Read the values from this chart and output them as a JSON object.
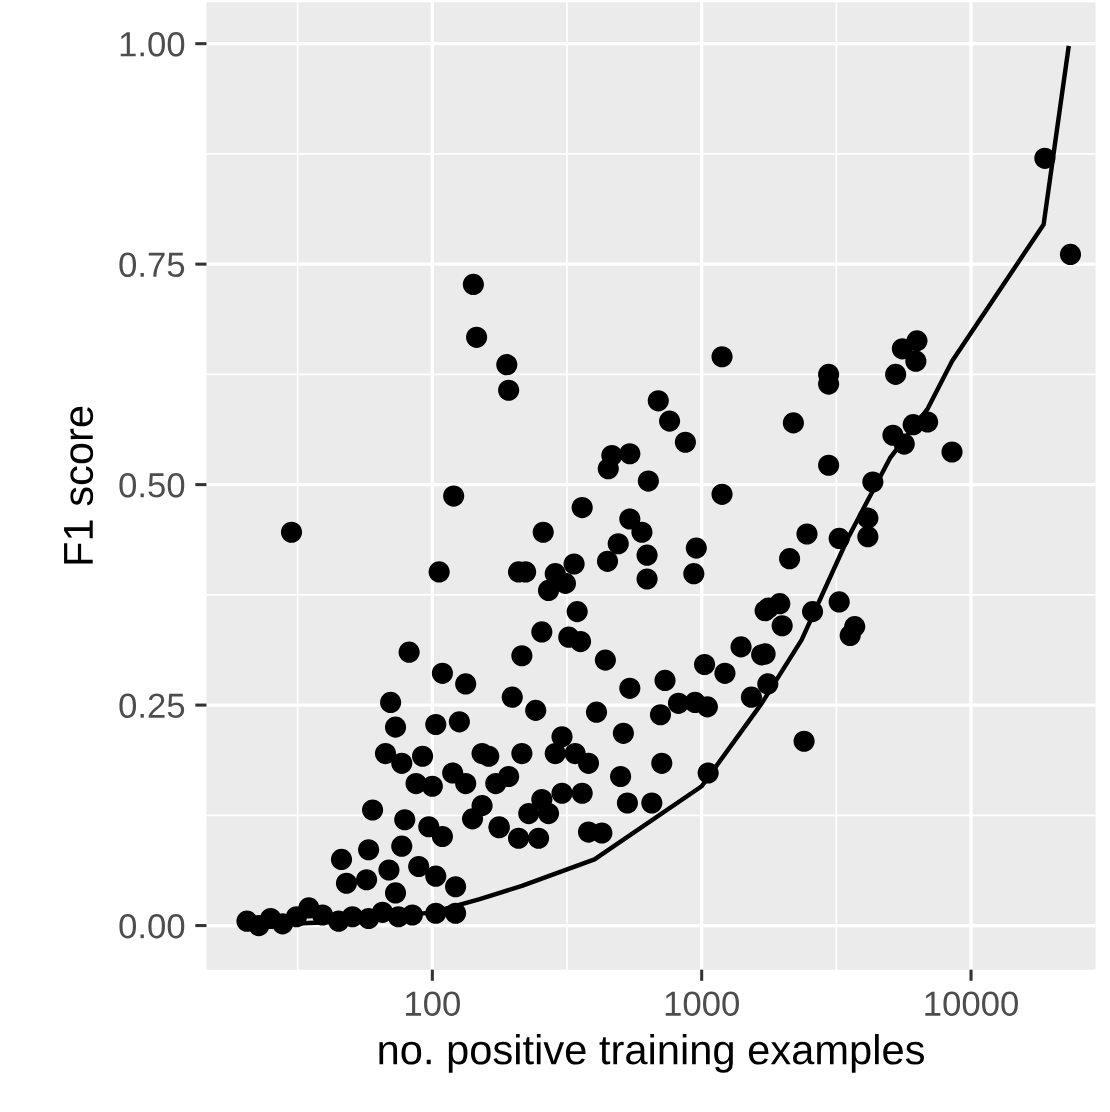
{
  "chart_data": {
    "type": "scatter",
    "xlabel": "no. positive training examples",
    "ylabel": "F1 score",
    "log": "x",
    "grid": true,
    "xlim": [
      14.5,
      29000
    ],
    "xticks": [
      100,
      1000,
      10000
    ],
    "ylim": [
      -0.05,
      1.047
    ],
    "yticks": [
      {
        "value": 0,
        "label": "0.00"
      },
      {
        "value": 0.25,
        "label": "0.25"
      },
      {
        "value": 0.5,
        "label": "0.50"
      },
      {
        "value": 0.75,
        "label": "0.75"
      },
      {
        "value": 1,
        "label": "1.00"
      }
    ],
    "series": [
      {
        "color": "#000000",
        "marker": "circle",
        "x": [
          18800,
          23400,
          6300,
          5560,
          6240,
          5250,
          2960,
          2960,
          2190,
          6900,
          6100,
          5130,
          5650,
          8500,
          2960,
          4320,
          4140,
          4140,
          2460,
          3240,
          2120,
          1950,
          1720,
          1990,
          2580,
          3240,
          3700,
          3560,
          1720,
          1760,
          2400,
          1190,
          690,
          760,
          870,
          464,
          541,
          450,
          634,
          1190,
          142,
          146,
          189,
          192,
          360,
          258,
          541,
          600,
          490,
          447,
          627,
          627,
          955,
          935,
          336,
          286,
          312,
          270,
          345,
          222,
          255,
          321,
          355,
          215,
          439,
          541,
          731,
          1025,
          1220,
          1400,
          1670,
          1770,
          1530,
          820,
          945,
          1050,
          703,
          198,
          242,
          407,
          512,
          303,
          339,
          380,
          286,
          215,
          162,
          192,
          711,
          500,
          1057,
          360,
          303,
          255,
          228,
          270,
          530,
          653,
          177,
          209,
          248,
          380,
          426,
          153,
          153,
          30,
          106,
          120,
          209,
          82,
          109,
          133,
          70,
          73,
          103,
          126,
          67,
          77,
          92,
          87,
          100,
          119,
          133,
          172,
          60,
          79,
          97,
          109,
          141,
          177,
          46,
          58,
          77,
          89,
          69,
          48,
          57,
          73,
          103,
          122,
          103,
          122,
          20.5,
          22.7,
          25.1,
          27.8,
          31.3,
          34.8,
          39.1,
          44.9,
          50.5,
          58,
          65.3,
          74.8,
          84.3
        ],
        "values": [
          0.87,
          0.761,
          0.663,
          0.654,
          0.64,
          0.625,
          0.625,
          0.614,
          0.57,
          0.571,
          0.568,
          0.556,
          0.546,
          0.537,
          0.522,
          0.503,
          0.462,
          0.441,
          0.444,
          0.439,
          0.416,
          0.365,
          0.357,
          0.34,
          0.356,
          0.367,
          0.339,
          0.329,
          0.308,
          0.274,
          0.209,
          0.645,
          0.595,
          0.572,
          0.548,
          0.533,
          0.535,
          0.518,
          0.504,
          0.489,
          0.727,
          0.667,
          0.636,
          0.607,
          0.474,
          0.446,
          0.461,
          0.446,
          0.433,
          0.413,
          0.42,
          0.393,
          0.428,
          0.399,
          0.41,
          0.399,
          0.388,
          0.38,
          0.356,
          0.401,
          0.333,
          0.327,
          0.322,
          0.306,
          0.301,
          0.269,
          0.278,
          0.296,
          0.286,
          0.316,
          0.307,
          0.36,
          0.259,
          0.252,
          0.253,
          0.248,
          0.239,
          0.259,
          0.244,
          0.242,
          0.218,
          0.214,
          0.195,
          0.184,
          0.195,
          0.195,
          0.192,
          0.169,
          0.184,
          0.169,
          0.173,
          0.15,
          0.15,
          0.143,
          0.127,
          0.127,
          0.139,
          0.139,
          0.112,
          0.099,
          0.099,
          0.106,
          0.105,
          0.195,
          0.136,
          0.446,
          0.401,
          0.487,
          0.401,
          0.31,
          0.286,
          0.274,
          0.253,
          0.225,
          0.228,
          0.231,
          0.195,
          0.184,
          0.192,
          0.161,
          0.158,
          0.173,
          0.161,
          0.161,
          0.131,
          0.12,
          0.112,
          0.101,
          0.121,
          0.111,
          0.075,
          0.086,
          0.09,
          0.067,
          0.063,
          0.048,
          0.052,
          0.037,
          0.056,
          0.044,
          0.014,
          0.014,
          0.005,
          0.0,
          0.008,
          0.002,
          0.01,
          0.02,
          0.012,
          0.005,
          0.01,
          0.008,
          0.015,
          0.01,
          0.012
        ]
      },
      {
        "type": "line",
        "color": "#000000",
        "line_style": "solid",
        "x": [
          20,
          50,
          100,
          150,
          215,
          400,
          1000,
          1670,
          2350,
          3500,
          5000,
          6900,
          8500,
          18600,
          23000
        ],
        "values": [
          0.0,
          0.005,
          0.015,
          0.03,
          0.045,
          0.075,
          0.158,
          0.252,
          0.324,
          0.44,
          0.53,
          0.586,
          0.64,
          0.795,
          0.995
        ]
      }
    ]
  }
}
